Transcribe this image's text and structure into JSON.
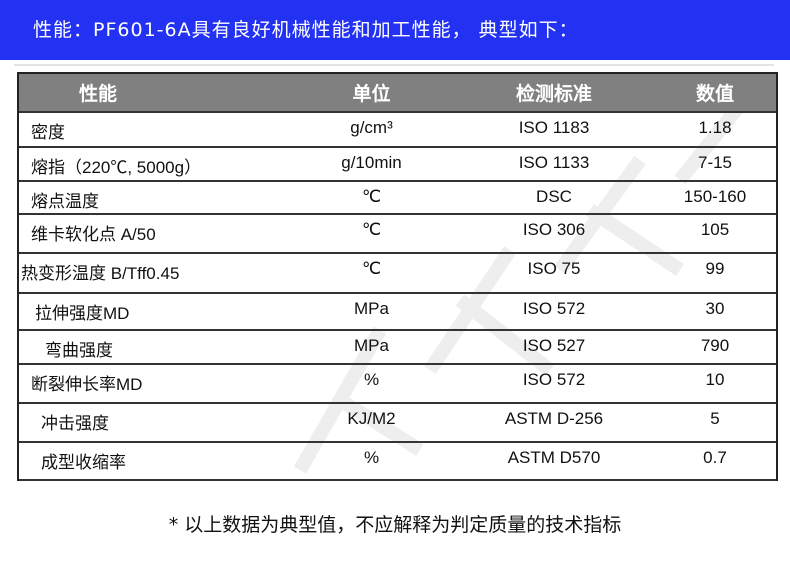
{
  "banner": {
    "text": "性能：PF601-6A具有良好机械性能和加工性能， 典型如下："
  },
  "table": {
    "headers": [
      "性能",
      "单位",
      "检测标准",
      "数值"
    ],
    "rows": [
      {
        "property": "密度",
        "unit": "g/cm³",
        "standard": "ISO 1183",
        "value": "1.18"
      },
      {
        "property": "熔指（220℃, 5000g）",
        "unit": "g/10min",
        "standard": "ISO 1133",
        "value": "7-15"
      },
      {
        "property": "熔点温度",
        "unit": "℃",
        "standard": "DSC",
        "value": "150-160"
      },
      {
        "property": "维卡软化点 A/50",
        "unit": "℃",
        "standard": "ISO 306",
        "value": "105"
      },
      {
        "property": "热变形温度 B/Tff0.45",
        "unit": "℃",
        "standard": "ISO 75",
        "value": "99"
      },
      {
        "property": "拉伸强度MD",
        "unit": "MPa",
        "standard": "ISO 572",
        "value": "30"
      },
      {
        "property": "弯曲强度",
        "unit": "MPa",
        "standard": "ISO 527",
        "value": "790"
      },
      {
        "property": "断裂伸长率MD",
        "unit": "%",
        "standard": "ISO 572",
        "value": "10"
      },
      {
        "property": "冲击强度",
        "unit": "KJ/M2",
        "standard": "ASTM D-256",
        "value": "5"
      },
      {
        "property": "成型收缩率",
        "unit": "%",
        "standard": "ASTM D570",
        "value": "0.7"
      }
    ]
  },
  "footnote": "* 以上数据为典型值，不应解释为判定质量的技术指标",
  "colors": {
    "banner": "#2332f2",
    "header": "#808080"
  }
}
